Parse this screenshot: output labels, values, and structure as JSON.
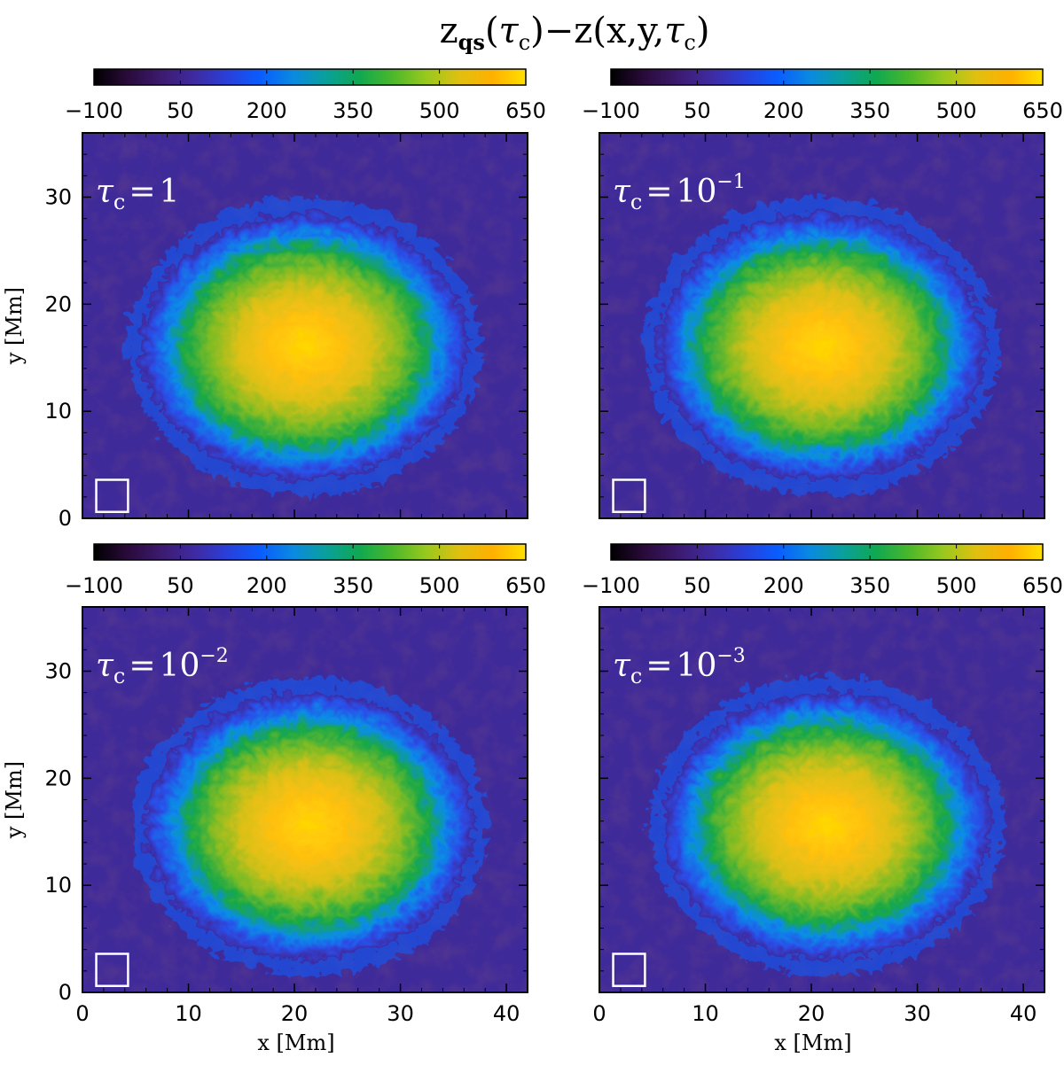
{
  "title": {
    "z_main": "z",
    "z_sub": "qs",
    "tau": "τ",
    "tau_sub": "c",
    "open": "(",
    "close": ")",
    "minus": "−",
    "z2": "z",
    "args_open": "(x,y,",
    "args_close": ")"
  },
  "colors": {
    "colormap": [
      "#000000",
      "#2a0a3a",
      "#3c1a6e",
      "#3f2aa0",
      "#2a3fd8",
      "#0a5cff",
      "#0a8ae0",
      "#0aa09a",
      "#10a850",
      "#4cb82a",
      "#98c81e",
      "#e0c010",
      "#ffb000",
      "#ffe000"
    ],
    "background_level": "#3f2a9a",
    "frame": "#000000",
    "marker_box": "#ffffff"
  },
  "chart_data": [
    {
      "type": "heatmap",
      "panel_label": {
        "tau": "τ",
        "sub": "c",
        "eq": "=",
        "base": "1",
        "exp": ""
      },
      "colorbar": {
        "ticks": [
          "−100",
          "50",
          "200",
          "350",
          "500",
          "650"
        ],
        "range": [
          -100,
          650
        ]
      },
      "xlim": [
        0,
        42
      ],
      "ylim": [
        0,
        36
      ],
      "x_ticks": [
        "0",
        "10",
        "20",
        "30",
        "40"
      ],
      "y_ticks": [
        "0",
        "10",
        "20",
        "30"
      ],
      "xlabel": "",
      "ylabel": "y [Mm]",
      "spot_center": [
        20.5,
        16.5
      ],
      "spot_peak": 600
    },
    {
      "type": "heatmap",
      "panel_label": {
        "tau": "τ",
        "sub": "c",
        "eq": "=",
        "base": "10",
        "exp": "−1"
      },
      "colorbar": {
        "ticks": [
          "−100",
          "50",
          "200",
          "350",
          "500",
          "650"
        ],
        "range": [
          -100,
          650
        ]
      },
      "xlim": [
        0,
        42
      ],
      "ylim": [
        0,
        36
      ],
      "x_ticks": [
        "0",
        "10",
        "20",
        "30",
        "40"
      ],
      "y_ticks": [
        "0",
        "10",
        "20",
        "30"
      ],
      "xlabel": "",
      "ylabel": "",
      "spot_center": [
        20.5,
        16.5
      ],
      "spot_peak": 620
    },
    {
      "type": "heatmap",
      "panel_label": {
        "tau": "τ",
        "sub": "c",
        "eq": "=",
        "base": "10",
        "exp": "−2"
      },
      "colorbar": {
        "ticks": [
          "−100",
          "50",
          "200",
          "350",
          "500",
          "650"
        ],
        "range": [
          -100,
          650
        ]
      },
      "xlim": [
        0,
        42
      ],
      "ylim": [
        0,
        36
      ],
      "x_ticks": [
        "0",
        "10",
        "20",
        "30",
        "40"
      ],
      "y_ticks": [
        "0",
        "10",
        "20",
        "30"
      ],
      "xlabel": "x [Mm]",
      "ylabel": "y [Mm]",
      "spot_center": [
        21,
        16
      ],
      "spot_peak": 610
    },
    {
      "type": "heatmap",
      "panel_label": {
        "tau": "τ",
        "sub": "c",
        "eq": "=",
        "base": "10",
        "exp": "−3"
      },
      "colorbar": {
        "ticks": [
          "−100",
          "50",
          "200",
          "350",
          "500",
          "650"
        ],
        "range": [
          -100,
          650
        ]
      },
      "xlim": [
        0,
        42
      ],
      "ylim": [
        0,
        36
      ],
      "x_ticks": [
        "0",
        "10",
        "20",
        "30",
        "40"
      ],
      "y_ticks": [
        "0",
        "10",
        "20",
        "30"
      ],
      "xlabel": "x [Mm]",
      "ylabel": "",
      "spot_center": [
        21,
        16
      ],
      "spot_peak": 600
    }
  ]
}
